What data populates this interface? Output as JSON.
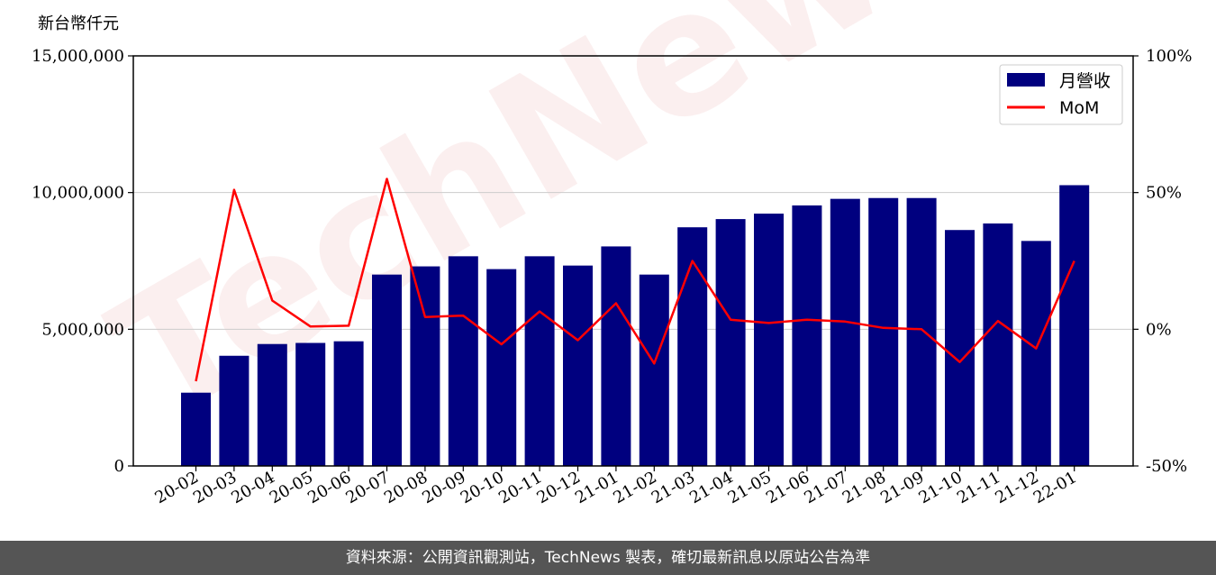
{
  "watermark": "TechNews",
  "footer_text": "資料來源：公開資訊觀測站，TechNews 製表，確切最新訊息以原站公告為準",
  "colors": {
    "bar": "#00007f",
    "line": "#ff0000",
    "footer_bg": "#555555"
  },
  "chart_data": {
    "type": "bar",
    "ylabel": "新台幣仟元",
    "categories": [
      "20-02",
      "20-03",
      "20-04",
      "20-05",
      "20-06",
      "20-07",
      "20-08",
      "20-09",
      "20-10",
      "20-11",
      "20-12",
      "21-01",
      "21-02",
      "21-03",
      "21-04",
      "21-05",
      "21-06",
      "21-07",
      "21-08",
      "21-09",
      "21-10",
      "21-11",
      "21-12",
      "22-01"
    ],
    "series": [
      {
        "name": "月營收",
        "type": "bar",
        "axis": "left",
        "values": [
          2680000,
          4030000,
          4460000,
          4500000,
          4560000,
          7000000,
          7300000,
          7670000,
          7200000,
          7670000,
          7330000,
          8030000,
          7000000,
          8730000,
          9030000,
          9230000,
          9530000,
          9770000,
          9800000,
          9800000,
          8630000,
          8870000,
          8230000,
          10270000
        ]
      },
      {
        "name": "MoM",
        "type": "line",
        "axis": "right",
        "values": [
          -19,
          51,
          10.5,
          1,
          1.3,
          55,
          4.5,
          5,
          -5.5,
          6.5,
          -4,
          9.5,
          -12.5,
          25,
          3.5,
          2.3,
          3.5,
          2.8,
          0.5,
          0,
          -12,
          3,
          -7,
          25
        ]
      }
    ],
    "ylim": [
      0,
      15000000
    ],
    "yticks": [
      "0",
      "5,000,000",
      "10,000,000",
      "15,000,000"
    ],
    "y2lim": [
      -50,
      100
    ],
    "y2ticks": [
      "-50%",
      "0%",
      "50%",
      "100%"
    ],
    "grid": "horizontal",
    "legend": "top-right"
  }
}
